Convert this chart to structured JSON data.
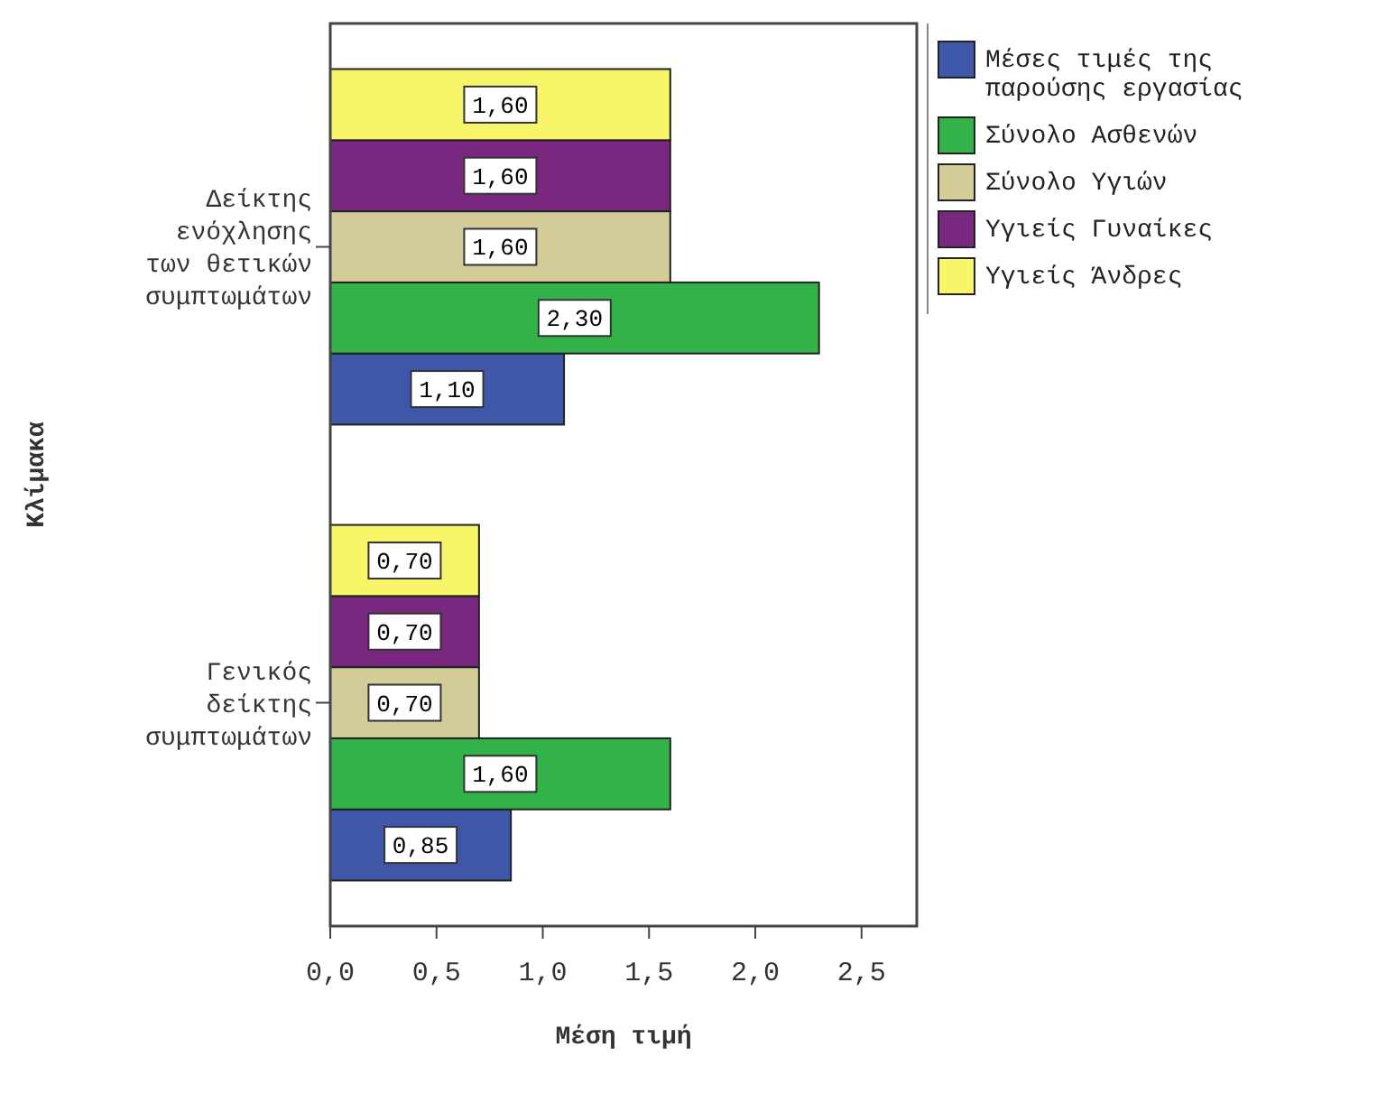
{
  "chart_data": {
    "type": "bar",
    "orientation": "horizontal",
    "xlabel": "Μέση τιμή",
    "ylabel": "Κλίμακα",
    "categories": [
      "Δείκτης\nενόχλησης\nτων θετικών\nσυμπτωμάτων",
      "Γενικός\nδείκτης\nσυμπτωμάτων"
    ],
    "series": [
      {
        "name": "Μέσες τιμές της παρούσης εργασίας",
        "color": "#3f57a8",
        "values": [
          1.1,
          0.85
        ],
        "value_labels": [
          "1,10",
          "0,85"
        ]
      },
      {
        "name": "Σύνολο Ασθενών",
        "color": "#33b249",
        "values": [
          2.3,
          1.6
        ],
        "value_labels": [
          "2,30",
          "1,60"
        ]
      },
      {
        "name": "Σύνολο Υγιών",
        "color": "#d4cc98",
        "values": [
          1.6,
          0.7
        ],
        "value_labels": [
          "1,60",
          "0,70"
        ]
      },
      {
        "name": "Υγιείς Γυναίκες",
        "color": "#7a2780",
        "values": [
          1.6,
          0.7
        ],
        "value_labels": [
          "1,60",
          "0,70"
        ]
      },
      {
        "name": "Υγιείς Άνδρες",
        "color": "#f8f668",
        "values": [
          1.6,
          0.7
        ],
        "value_labels": [
          "1,60",
          "0,70"
        ]
      }
    ],
    "xlim": [
      0,
      2.76
    ],
    "xticks": [
      {
        "value": 0,
        "label": "0,0"
      },
      {
        "value": 0.5,
        "label": "0,5"
      },
      {
        "value": 1,
        "label": "1,0"
      },
      {
        "value": 1.5,
        "label": "1,5"
      },
      {
        "value": 2,
        "label": "2,0"
      },
      {
        "value": 2.5,
        "label": "2,5"
      }
    ],
    "legend": "top right",
    "grid": false
  }
}
